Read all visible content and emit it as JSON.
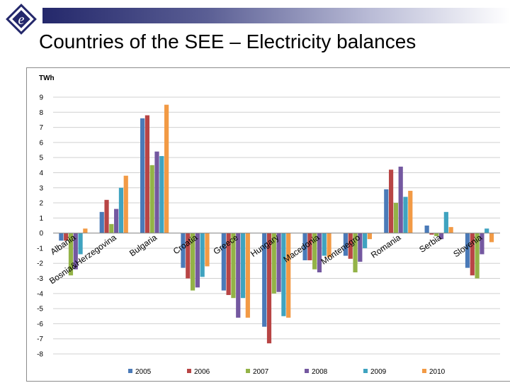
{
  "slide": {
    "title": "Countries of the SEE – Electricity balances",
    "logo_icon": "ec-logo-icon",
    "title_bar_color": "#24286b"
  },
  "chart_data": {
    "type": "bar",
    "ylabel": "TWh",
    "xlabel": "",
    "ylim": [
      -8,
      9
    ],
    "yticks": [
      9,
      8,
      7,
      6,
      5,
      4,
      3,
      2,
      1,
      0,
      -1,
      -2,
      -3,
      -4,
      -5,
      -6,
      -7,
      -8
    ],
    "grid": true,
    "legend_position": "bottom",
    "categories": [
      "Albania",
      "Bosnia&Herzegovina",
      "Bulgaria",
      "Croatia",
      "Greece",
      "Hungary",
      "Macedonia",
      "Montenegro",
      "Romania",
      "Serbia",
      "Slovenia"
    ],
    "series": [
      {
        "name": "2005",
        "color": "#4a7ab8",
        "values": [
          -0.5,
          1.4,
          7.6,
          -2.3,
          -3.8,
          -6.2,
          -1.8,
          -1.5,
          2.9,
          0.5,
          -2.3
        ]
      },
      {
        "name": "2006",
        "color": "#b84545",
        "values": [
          -0.5,
          2.2,
          7.8,
          -3.0,
          -4.1,
          -7.3,
          -1.8,
          -1.7,
          4.2,
          -0.1,
          -2.8
        ]
      },
      {
        "name": "2007",
        "color": "#93b347",
        "values": [
          -2.8,
          0.6,
          4.5,
          -3.8,
          -4.3,
          -4.0,
          -2.4,
          -2.6,
          2.0,
          -0.2,
          -3.0
        ]
      },
      {
        "name": "2008",
        "color": "#7458a0",
        "values": [
          -2.4,
          1.6,
          5.4,
          -3.6,
          -5.6,
          -3.9,
          -2.6,
          -1.9,
          4.4,
          -0.4,
          -1.4
        ]
      },
      {
        "name": "2009",
        "color": "#3fa3c0",
        "values": [
          -1.4,
          3.0,
          5.1,
          -2.9,
          -4.3,
          -5.5,
          -1.5,
          -1.0,
          2.4,
          1.4,
          0.3
        ]
      },
      {
        "name": "2010",
        "color": "#f29a45",
        "values": [
          0.3,
          3.8,
          8.5,
          -2.2,
          -5.6,
          -5.6,
          -1.6,
          -0.4,
          2.8,
          0.4,
          -0.6
        ]
      }
    ]
  }
}
